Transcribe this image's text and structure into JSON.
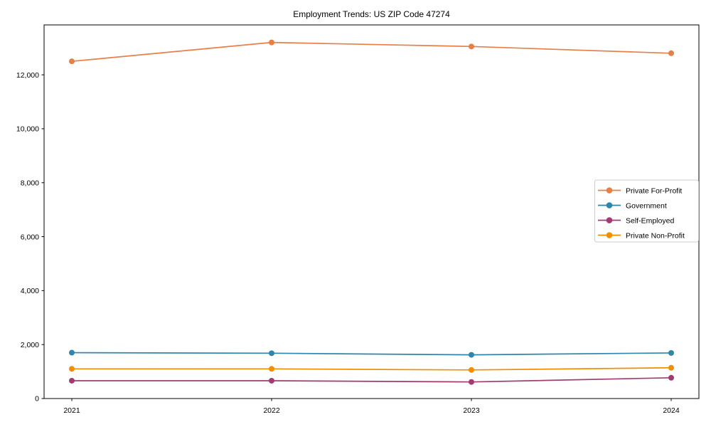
{
  "figure": {
    "background": "#ffffff"
  },
  "chart_data": {
    "type": "line",
    "title": "Employment Trends: US ZIP Code 47274",
    "categories": [
      "2021",
      "2022",
      "2023",
      "2024"
    ],
    "series": [
      {
        "name": "Private For-Profit",
        "color": "#E77F48",
        "values": [
          12500,
          13200,
          13050,
          12800
        ]
      },
      {
        "name": "Government",
        "color": "#2E86AB",
        "values": [
          1700,
          1680,
          1620,
          1690
        ]
      },
      {
        "name": "Self-Employed",
        "color": "#A23B72",
        "values": [
          660,
          660,
          615,
          770
        ]
      },
      {
        "name": "Private Non-Profit",
        "color": "#F18F01",
        "values": [
          1100,
          1100,
          1060,
          1140
        ]
      }
    ],
    "xlabel": "",
    "ylabel": "",
    "ylim": [
      0,
      13850
    ],
    "yticks": [
      0,
      2000,
      4000,
      6000,
      8000,
      10000,
      12000
    ],
    "grid": false,
    "marker": "o",
    "legend": {
      "position": "center right",
      "border_color": "#cccccc",
      "background": "#ffffff"
    }
  }
}
